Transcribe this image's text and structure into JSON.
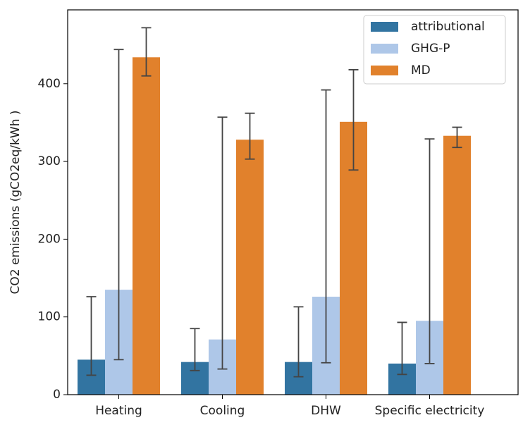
{
  "chart_data": {
    "type": "bar",
    "y_label": "CO2 emissions (gCO2eq/kWh )",
    "categories": [
      "Heating",
      "Cooling",
      "DHW",
      "Specific electricity"
    ],
    "series": [
      {
        "name": "attributional",
        "color": "#3274a1",
        "values": [
          45,
          42,
          42,
          40
        ],
        "err_lower": [
          25,
          31,
          23,
          26
        ],
        "err_upper": [
          126,
          85,
          113,
          93
        ]
      },
      {
        "name": "GHG-P",
        "color": "#aec7e8",
        "values": [
          135,
          71,
          126,
          95
        ],
        "err_lower": [
          45,
          33,
          41,
          40
        ],
        "err_upper": [
          444,
          357,
          392,
          329
        ]
      },
      {
        "name": "MD",
        "color": "#e1812c",
        "values": [
          434,
          328,
          351,
          333
        ],
        "err_lower": [
          410,
          303,
          289,
          318
        ],
        "err_upper": [
          472,
          362,
          418,
          344
        ]
      }
    ],
    "ylim": [
      0,
      495
    ],
    "yticks": [
      0,
      100,
      200,
      300,
      400
    ],
    "legend": "upper right"
  }
}
